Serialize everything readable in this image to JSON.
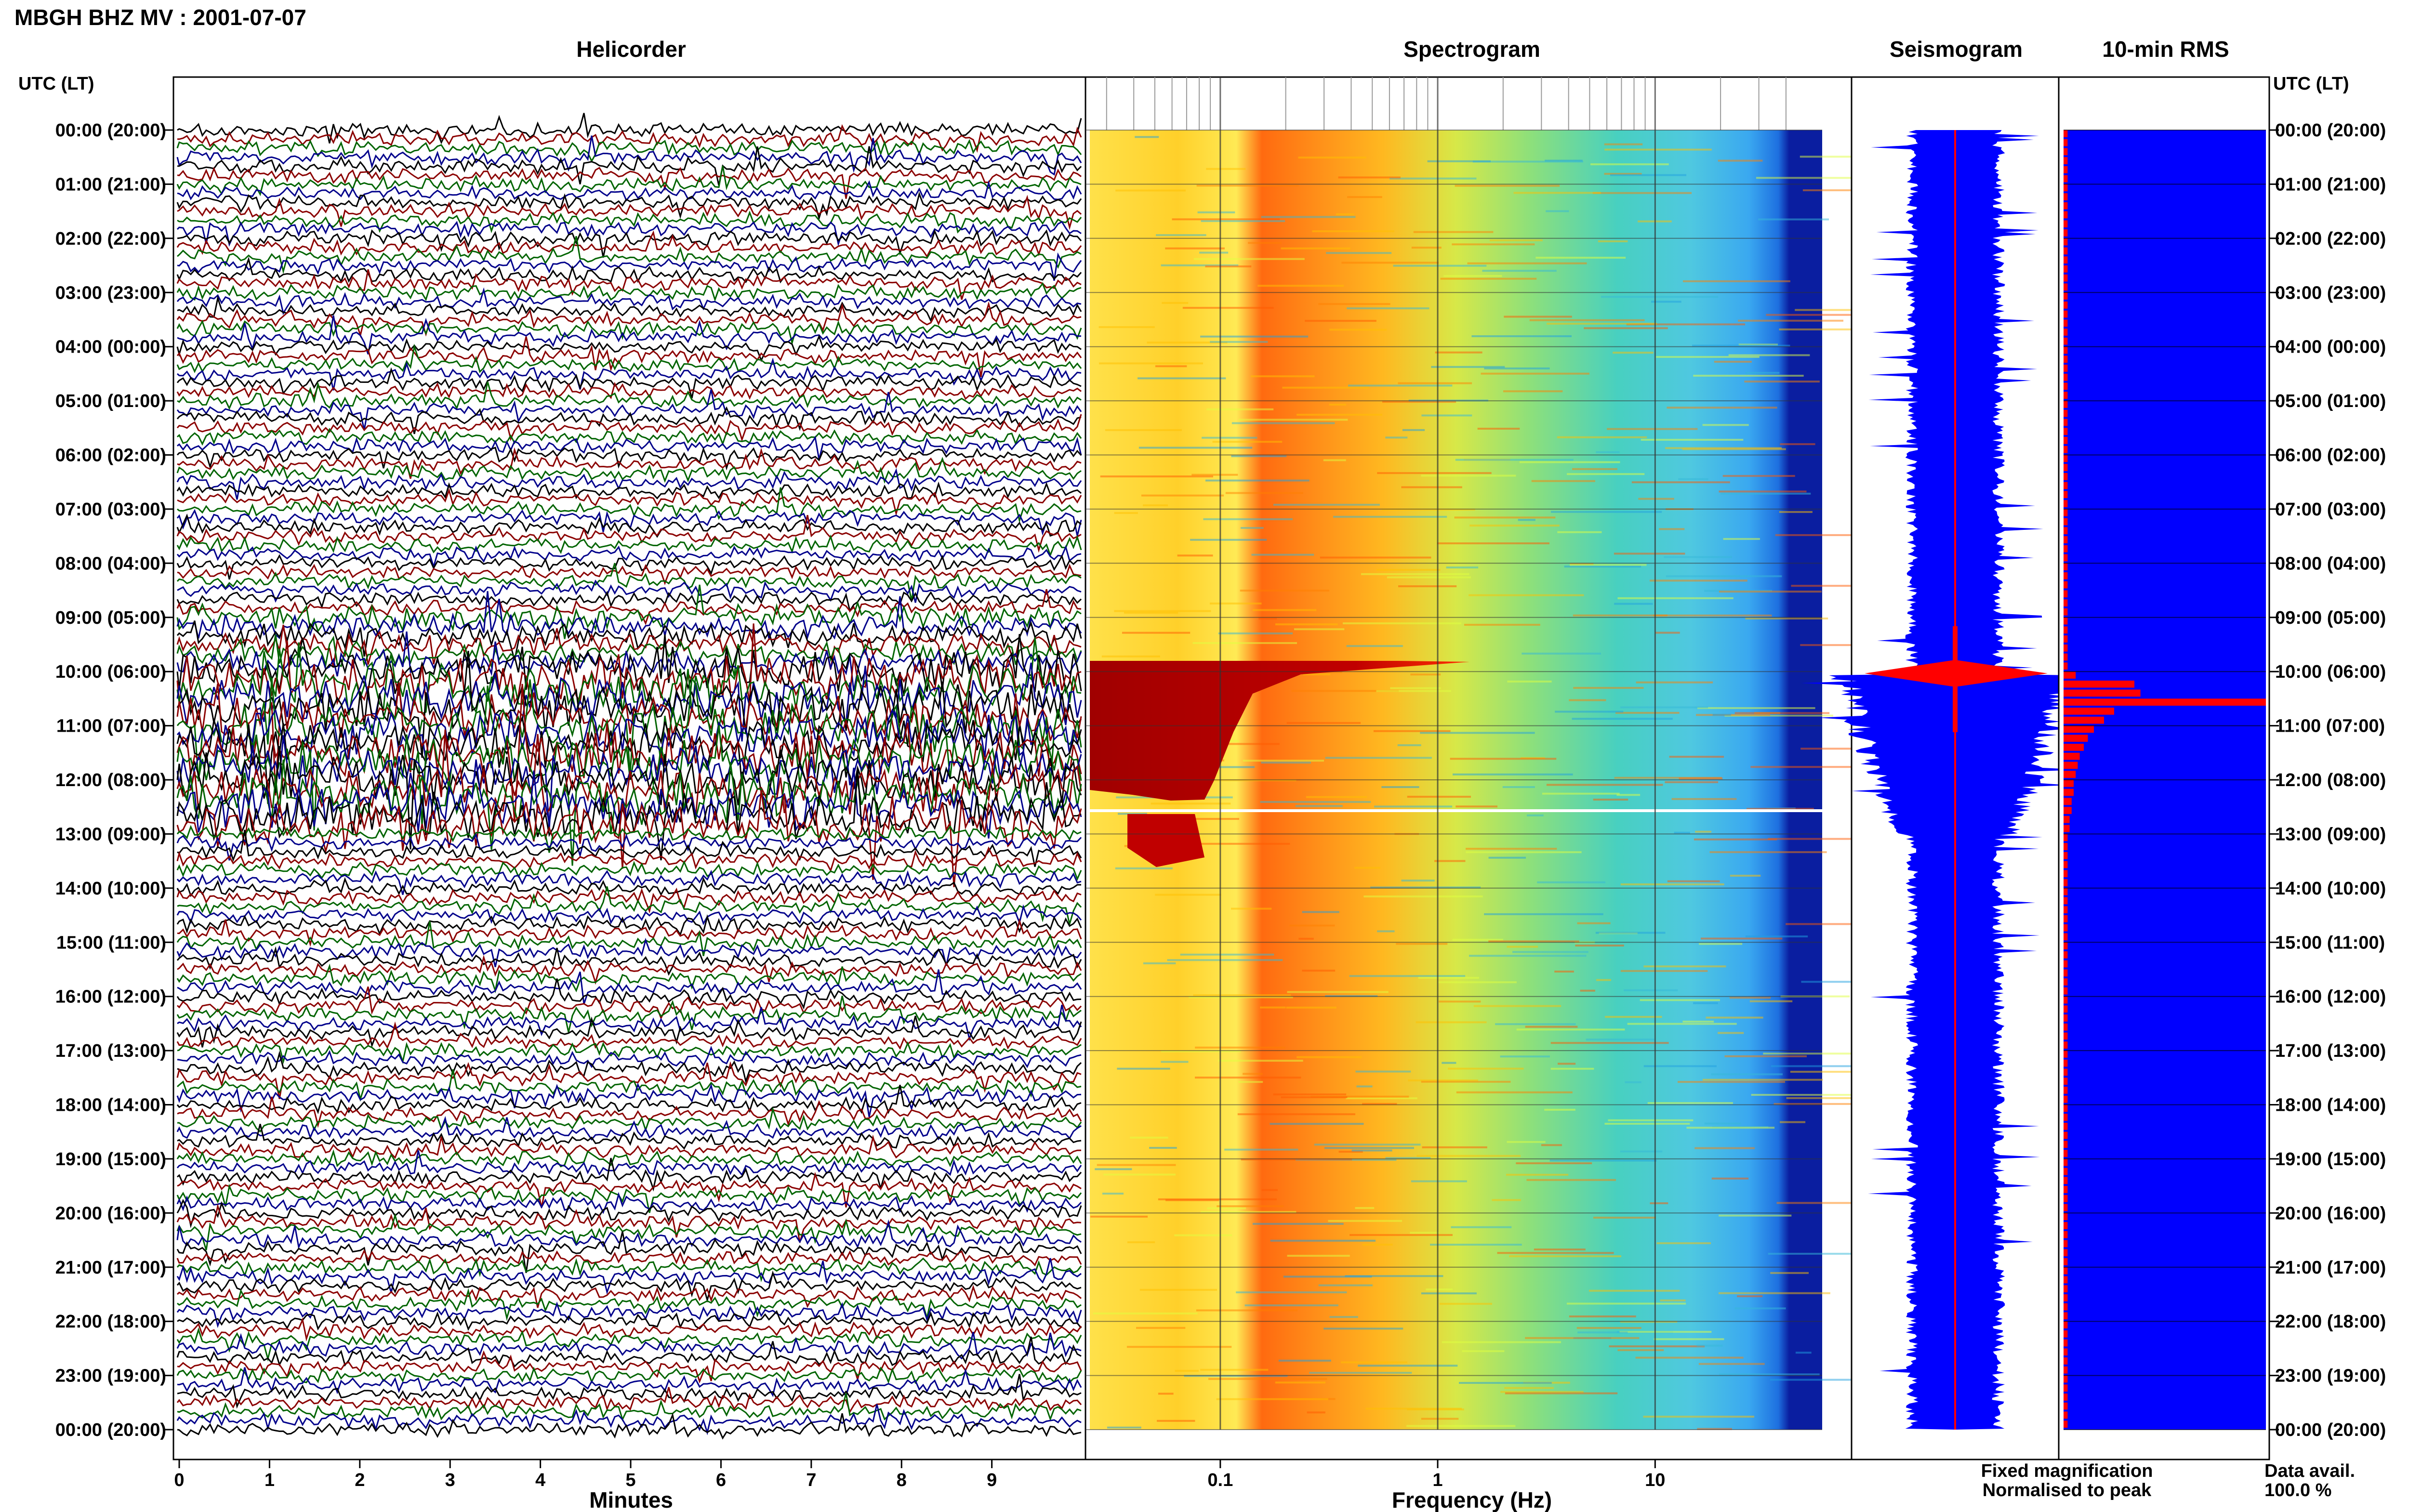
{
  "title": "MBGH BHZ MV : 2001-07-07",
  "panels": {
    "helicorder": "Helicorder",
    "spectrogram": "Spectrogram",
    "seismogram": "Seismogram",
    "rms": "10-min RMS"
  },
  "axis_headers": {
    "left": "UTC (LT)",
    "right": "UTC (LT)"
  },
  "time_labels": [
    "00:00 (20:00)",
    "01:00 (21:00)",
    "02:00 (22:00)",
    "03:00 (23:00)",
    "04:00 (00:00)",
    "05:00 (01:00)",
    "06:00 (02:00)",
    "07:00 (03:00)",
    "08:00 (04:00)",
    "09:00 (05:00)",
    "10:00 (06:00)",
    "11:00 (07:00)",
    "12:00 (08:00)",
    "13:00 (09:00)",
    "14:00 (10:00)",
    "15:00 (11:00)",
    "16:00 (12:00)",
    "17:00 (13:00)",
    "18:00 (14:00)",
    "19:00 (15:00)",
    "20:00 (16:00)",
    "21:00 (17:00)",
    "22:00 (18:00)",
    "23:00 (19:00)",
    "00:00 (20:00)"
  ],
  "x_axes": {
    "minutes_label": "Minutes",
    "minutes_ticks": [
      "0",
      "1",
      "2",
      "3",
      "4",
      "5",
      "6",
      "7",
      "8",
      "9"
    ],
    "frequency_label": "Frequency (Hz)",
    "frequency_ticks": [
      "0.1",
      "1",
      "10"
    ]
  },
  "legend": {
    "fixed": "Fixed magnification",
    "normalised": "Normalised to peak",
    "fixed_color": "#0000ff",
    "normalised_color": "#ff0000"
  },
  "data_avail": {
    "label": "Data avail.",
    "value": "100.0 %"
  },
  "colors": {
    "helicorder": [
      "#000000",
      "#8b0000",
      "#006400",
      "#00008b"
    ],
    "rms": "#0000ff",
    "peak": "#ff0000"
  },
  "chart_data": {
    "type": "heatmap",
    "title": "MBGH BHZ MV : 2001-07-07",
    "panels": [
      "Helicorder",
      "Spectrogram",
      "Seismogram",
      "10-min RMS"
    ],
    "xlabel_helicorder": "Minutes",
    "xlabel_spectrogram": "Frequency (Hz)",
    "frequency_scale": "log",
    "frequency_ticks": [
      0.1,
      1,
      10
    ],
    "minutes_range": [
      0,
      10
    ],
    "time_range_utc": [
      "00:00",
      "24:00"
    ],
    "event_time_utc": "10:00",
    "rms_normalised": [
      0.02,
      0.02,
      0.02,
      0.02,
      0.02,
      0.02,
      0.02,
      0.02,
      0.02,
      0.02,
      0.02,
      0.02,
      0.02,
      0.02,
      0.02,
      0.02,
      0.02,
      0.02,
      0.02,
      0.02,
      0.02,
      0.02,
      0.02,
      0.02,
      0.02,
      0.02,
      0.02,
      0.02,
      0.02,
      0.02,
      0.02,
      0.02,
      0.02,
      0.02,
      0.02,
      0.02,
      0.02,
      0.02,
      0.02,
      0.02,
      0.02,
      0.02,
      0.02,
      0.02,
      0.02,
      0.02,
      0.02,
      0.02,
      0.02,
      0.02,
      0.02,
      0.02,
      0.02,
      0.02,
      0.02,
      0.02,
      0.02,
      0.02,
      0.02,
      0.02,
      0.06,
      0.35,
      0.38,
      1.0,
      0.25,
      0.2,
      0.15,
      0.12,
      0.1,
      0.08,
      0.07,
      0.06,
      0.05,
      0.05,
      0.04,
      0.04,
      0.03,
      0.03,
      0.02,
      0.02,
      0.02,
      0.02,
      0.02,
      0.02,
      0.02,
      0.02,
      0.02,
      0.02,
      0.02,
      0.02,
      0.02,
      0.02,
      0.02,
      0.02,
      0.02,
      0.02,
      0.02,
      0.02,
      0.02,
      0.02,
      0.02,
      0.02,
      0.02,
      0.02,
      0.02,
      0.02,
      0.02,
      0.02,
      0.02,
      0.02,
      0.02,
      0.02,
      0.02,
      0.02,
      0.02,
      0.02,
      0.02,
      0.02,
      0.02,
      0.02,
      0.02,
      0.02,
      0.02,
      0.02,
      0.02,
      0.02,
      0.02,
      0.02,
      0.02,
      0.02,
      0.02,
      0.02,
      0.02,
      0.02,
      0.02,
      0.02,
      0.02,
      0.02,
      0.02,
      0.02,
      0.02,
      0.02,
      0.02,
      0.02
    ],
    "data_availability_percent": 100.0
  }
}
